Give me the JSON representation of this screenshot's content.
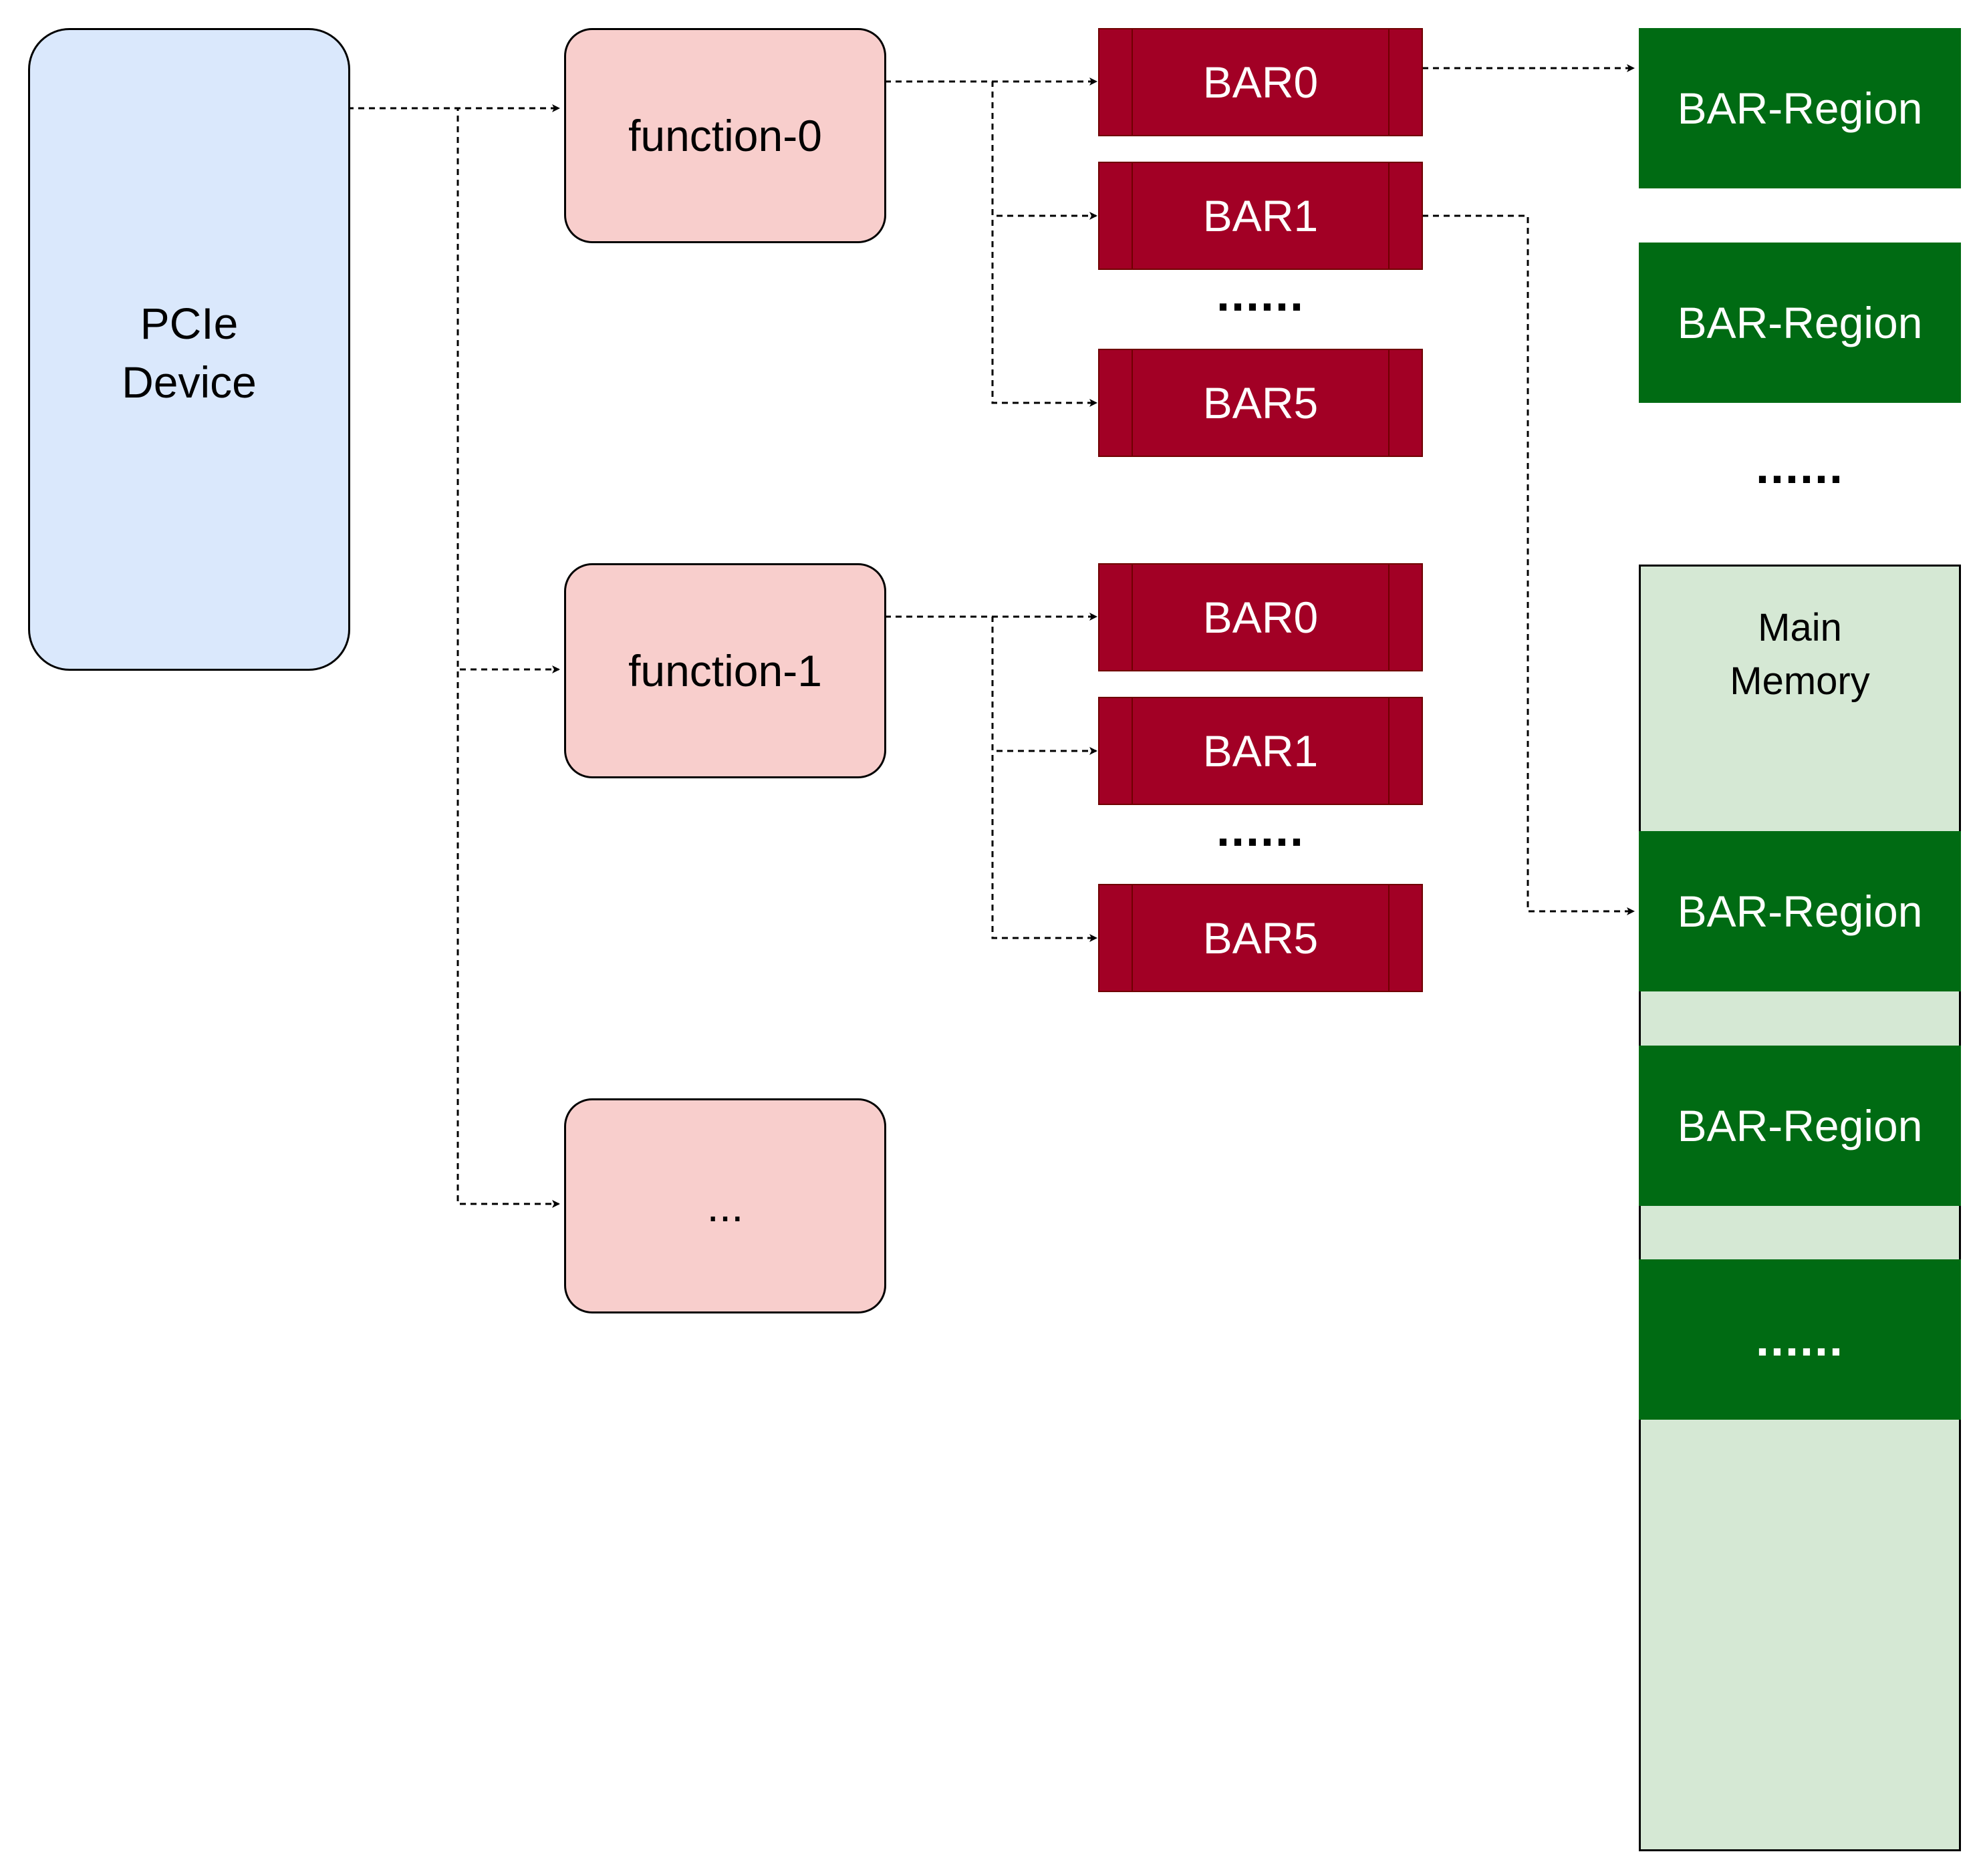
{
  "diagram": {
    "pcie_device": {
      "label": "PCIe\nDevice"
    },
    "functions": [
      {
        "label": "function-0"
      },
      {
        "label": "function-1"
      },
      {
        "label": "..."
      }
    ],
    "function0_bars": [
      {
        "label": "BAR0"
      },
      {
        "label": "BAR1"
      },
      {
        "label": "BAR5"
      }
    ],
    "function0_bars_ellipsis": "......",
    "function1_bars": [
      {
        "label": "BAR0"
      },
      {
        "label": "BAR1"
      },
      {
        "label": "BAR5"
      }
    ],
    "function1_bars_ellipsis": "......",
    "regions_top": [
      {
        "label": "BAR-Region"
      },
      {
        "label": "BAR-Region"
      }
    ],
    "regions_top_ellipsis": "......",
    "main_memory": {
      "title": "Main\nMemory",
      "regions": [
        {
          "label": "BAR-Region"
        },
        {
          "label": "BAR-Region"
        },
        {
          "label": "......"
        }
      ]
    },
    "colors": {
      "pcie_fill": "#dae8fc",
      "function_fill": "#f8cecc",
      "bar_fill": "#a20025",
      "region_fill": "#006b13",
      "memory_fill": "#d5e8d4"
    }
  }
}
